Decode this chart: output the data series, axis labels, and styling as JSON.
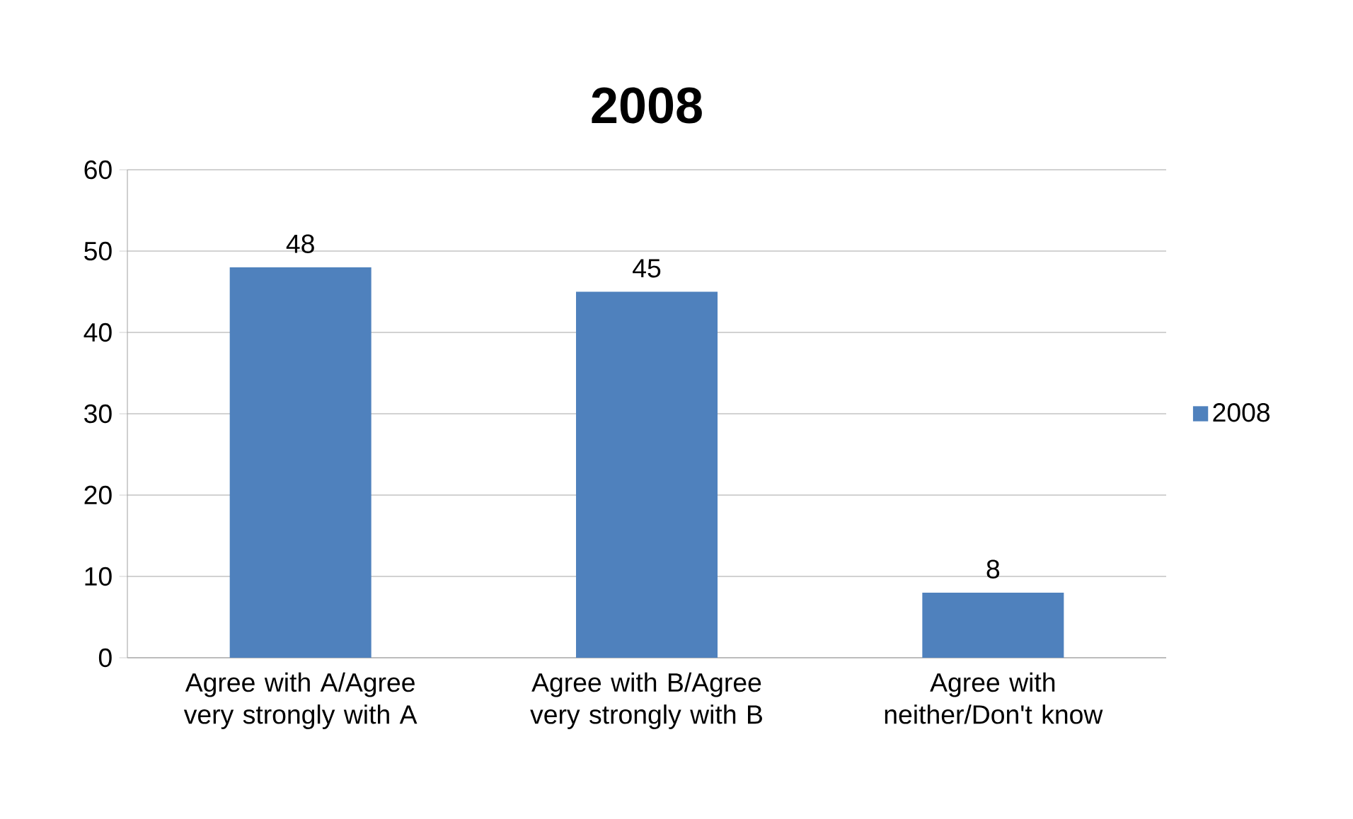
{
  "chart_data": {
    "type": "bar",
    "title": "2008",
    "categories": [
      "Agree with A/Agree very strongly with A",
      "Agree with B/Agree very strongly with B",
      "Agree with neither/Don't know"
    ],
    "series": [
      {
        "name": "2008",
        "color": "#4f81bd",
        "values": [
          48,
          45,
          8
        ]
      }
    ],
    "ylim": [
      0,
      60
    ],
    "yticks": [
      0,
      10,
      20,
      30,
      40,
      50,
      60
    ],
    "grid": "y",
    "legend": "right",
    "data_labels": true
  }
}
